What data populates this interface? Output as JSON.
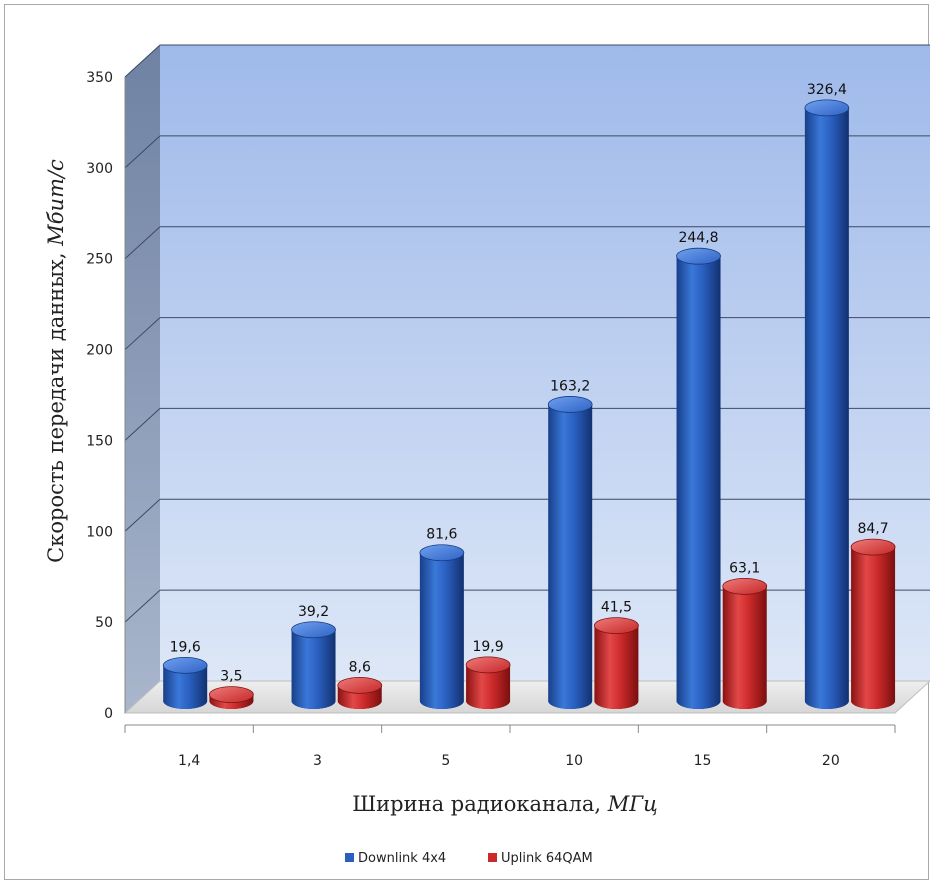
{
  "chart_data": {
    "type": "bar",
    "title": "",
    "xlabel": {
      "text": "Ширина радиоканала, ",
      "unit": "МГц"
    },
    "ylabel": {
      "text": "Скорость передачи данных, ",
      "unit": "Мбит/с"
    },
    "categories": [
      "1,4",
      "3",
      "5",
      "10",
      "15",
      "20"
    ],
    "y_ticks": [
      0,
      50,
      100,
      150,
      200,
      250,
      300,
      350
    ],
    "ylim": [
      0,
      350
    ],
    "grid": true,
    "legend_position": "bottom",
    "series": [
      {
        "name": "Downlink 4x4",
        "color": "#2a5fbf",
        "values": [
          19.6,
          39.2,
          81.6,
          163.2,
          244.8,
          326.4
        ],
        "labels": [
          "19,6",
          "39,2",
          "81,6",
          "163,2",
          "244,8",
          "326,4"
        ]
      },
      {
        "name": "Uplink 64QAM",
        "color": "#cc2a2a",
        "values": [
          3.5,
          8.6,
          19.9,
          41.5,
          63.1,
          84.7
        ],
        "labels": [
          "3,5",
          "8,6",
          "19,9",
          "41,5",
          "63,1",
          "84,7"
        ]
      }
    ]
  }
}
